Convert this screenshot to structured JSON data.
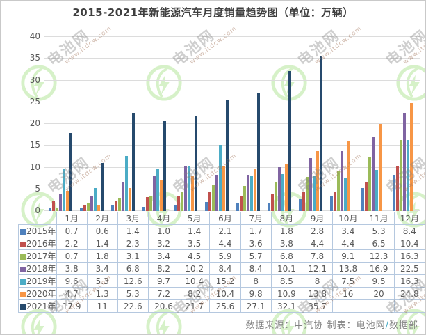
{
  "title": "2015-2021年新能源汽车月度销量趋势图（单位：万辆）",
  "watermark": {
    "brand": "电池网",
    "url": "www.itdcw.com"
  },
  "footer": {
    "source_label": "数据来源：",
    "source_value": "中汽协",
    "author_label": "  制表：",
    "author_value": "电池网",
    "slash": "/",
    "dept": "数据部"
  },
  "colors": {
    "title_text": "#3f3f3f",
    "axis_text": "#595959",
    "gridline": "#dcdcdc",
    "table_border": "#b5c8df",
    "table_text": "#595959",
    "footer_text": "#828282",
    "footer_slash": "#4bacc6",
    "watermark_green": "#cdeebb"
  },
  "chart_data": {
    "type": "bar",
    "title": "2015-2021年新能源汽车月度销量趋势图（单位：万辆）",
    "unit": "万辆",
    "xlabel": "",
    "ylabel": "",
    "ylim": [
      0,
      40
    ],
    "ytick_interval": 5,
    "grid": true,
    "legend_position": "data-table-left",
    "categories": [
      "1月",
      "2月",
      "3月",
      "4月",
      "5月",
      "6月",
      "7月",
      "8月",
      "9月",
      "10月",
      "11月",
      "12月"
    ],
    "series": [
      {
        "name": "2015年",
        "color": "#4f81bd",
        "values": [
          0.7,
          0.6,
          1.4,
          1.0,
          1.4,
          2.1,
          1.7,
          1.8,
          2.8,
          3.4,
          5.3,
          8.4
        ],
        "labels": [
          "0.7",
          "0.6",
          "1.4",
          "1.0",
          "1.4",
          "2.1",
          "1.7",
          "1.8",
          "2.8",
          "3.4",
          "5.3",
          "8.4"
        ]
      },
      {
        "name": "2016年",
        "color": "#c0504d",
        "values": [
          2.2,
          1.4,
          2.3,
          3.2,
          3.5,
          4.4,
          3.6,
          3.8,
          4.4,
          4.4,
          6.5,
          10.4
        ],
        "labels": [
          "2.2",
          "1.4",
          "2.3",
          "3.2",
          "3.5",
          "4.4",
          "3.6",
          "3.8",
          "4.4",
          "4.4",
          "6.5",
          "10.4"
        ]
      },
      {
        "name": "2017年",
        "color": "#9bbb59",
        "values": [
          0.7,
          1.8,
          3.1,
          3.4,
          4.5,
          5.9,
          5.7,
          6.8,
          7.8,
          9.1,
          12.3,
          16.3
        ],
        "labels": [
          "0.7",
          "1.8",
          "3.1",
          "3.4",
          "4.5",
          "5.9",
          "5.7",
          "6.8",
          "7.8",
          "9.1",
          "12.3",
          "16.3"
        ]
      },
      {
        "name": "2018年",
        "color": "#8064a2",
        "values": [
          3.8,
          3.4,
          6.8,
          8.2,
          10.2,
          8.4,
          8.4,
          10.1,
          12.1,
          13.8,
          16.9,
          22.5
        ],
        "labels": [
          "3.8",
          "3.4",
          "6.8",
          "8.2",
          "10.2",
          "8.4",
          "8.4",
          "10.1",
          "12.1",
          "13.8",
          "16.9",
          "22.5"
        ]
      },
      {
        "name": "2019年",
        "color": "#4bacc6",
        "values": [
          9.6,
          5.3,
          12.6,
          9.7,
          10.4,
          15.2,
          8,
          8.5,
          8,
          7.5,
          9.5,
          16.3
        ],
        "labels": [
          "9.6",
          "5.3",
          "12.6",
          "9.7",
          "10.4",
          "15.2",
          "8",
          "8.5",
          "8",
          "7.5",
          "9.5",
          "16.3"
        ]
      },
      {
        "name": "2020年",
        "color": "#f79646",
        "values": [
          4.7,
          1.3,
          5.3,
          7.2,
          8.2,
          10.4,
          9.8,
          10.9,
          13.8,
          16,
          20,
          24.8
        ],
        "labels": [
          "4.7",
          "1.3",
          "5.3",
          "7.2",
          "8.2",
          "10.4",
          "9.8",
          "10.9",
          "13.8",
          "16",
          "20",
          "24.8"
        ]
      },
      {
        "name": "2021年",
        "color": "#264a6d",
        "values": [
          17.9,
          11,
          22.6,
          20.6,
          21.7,
          25.6,
          27.1,
          32.1,
          35.7,
          null,
          null,
          null
        ],
        "labels": [
          "17.9",
          "11",
          "22.6",
          "20.6",
          "21.7",
          "25.6",
          "27.1",
          "32.1",
          "35.7",
          "",
          "",
          ""
        ]
      }
    ]
  }
}
